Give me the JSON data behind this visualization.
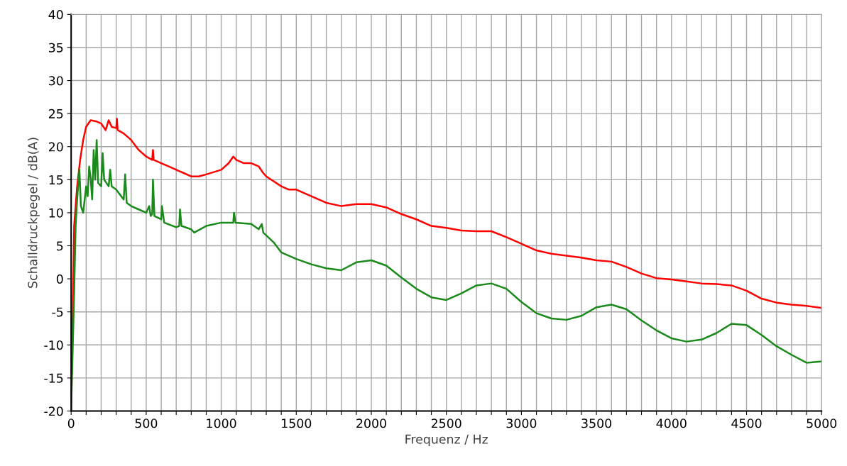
{
  "chart_data": {
    "type": "line",
    "xlabel": "Frequenz / Hz",
    "ylabel": "Schalldruckpegel / dB(A)",
    "xlim": [
      0,
      5000
    ],
    "ylim": [
      -20,
      40
    ],
    "xticks": [
      0,
      {
        "value": 100,
        "label": null
      },
      {
        "value": 200,
        "label": null
      },
      {
        "value": 300,
        "label": null
      },
      {
        "value": 400,
        "label": null
      },
      500,
      {
        "value": 600,
        "label": null
      },
      {
        "value": 700,
        "label": null
      },
      {
        "value": 800,
        "label": null
      },
      {
        "value": 900,
        "label": null
      },
      1000,
      {
        "value": 1100,
        "label": null
      },
      {
        "value": 1200,
        "label": null
      },
      {
        "value": 1300,
        "label": null
      },
      {
        "value": 1400,
        "label": null
      },
      1500,
      {
        "value": 1600,
        "label": null
      },
      {
        "value": 1700,
        "label": null
      },
      {
        "value": 1800,
        "label": null
      },
      {
        "value": 1900,
        "label": null
      },
      2000,
      {
        "value": 2100,
        "label": null
      },
      {
        "value": 2200,
        "label": null
      },
      {
        "value": 2300,
        "label": null
      },
      {
        "value": 2400,
        "label": null
      },
      2500,
      {
        "value": 2600,
        "label": null
      },
      {
        "value": 2700,
        "label": null
      },
      {
        "value": 2800,
        "label": null
      },
      {
        "value": 2900,
        "label": null
      },
      3000,
      {
        "value": 3100,
        "label": null
      },
      {
        "value": 3200,
        "label": null
      },
      {
        "value": 3300,
        "label": null
      },
      {
        "value": 3400,
        "label": null
      },
      3500,
      {
        "value": 3600,
        "label": null
      },
      {
        "value": 3700,
        "label": null
      },
      {
        "value": 3800,
        "label": null
      },
      {
        "value": 3900,
        "label": null
      },
      4000,
      {
        "value": 4100,
        "label": null
      },
      {
        "value": 4200,
        "label": null
      },
      {
        "value": 4300,
        "label": null
      },
      {
        "value": 4400,
        "label": null
      },
      4500,
      {
        "value": 4600,
        "label": null
      },
      {
        "value": 4700,
        "label": null
      },
      {
        "value": 4800,
        "label": null
      },
      {
        "value": 4900,
        "label": null
      },
      5000
    ],
    "yticks": [
      -20,
      -15,
      -10,
      -5,
      0,
      5,
      10,
      15,
      20,
      25,
      30,
      35,
      40
    ],
    "grid": true,
    "marker": "none",
    "line_style": "solid",
    "series": [
      {
        "color": "#ff0000",
        "x": [
          0,
          20,
          40,
          60,
          80,
          100,
          130,
          170,
          200,
          230,
          250,
          270,
          300,
          305,
          310,
          350,
          400,
          450,
          500,
          540,
          545,
          550,
          600,
          650,
          700,
          750,
          800,
          850,
          900,
          1000,
          1050,
          1080,
          1100,
          1150,
          1200,
          1250,
          1280,
          1300,
          1400,
          1450,
          1500,
          1600,
          1700,
          1800,
          1900,
          2000,
          2100,
          2200,
          2300,
          2400,
          2500,
          2600,
          2700,
          2800,
          2900,
          3000,
          3100,
          3200,
          3300,
          3400,
          3500,
          3600,
          3700,
          3800,
          3900,
          4000,
          4100,
          4200,
          4300,
          4400,
          4500,
          4600,
          4700,
          4800,
          4900,
          5000
        ],
        "values": [
          -20,
          8,
          14,
          18,
          21,
          23,
          24,
          23.8,
          23.5,
          22.5,
          24,
          23,
          22.8,
          24.2,
          22.5,
          22,
          21,
          19.5,
          18.5,
          18,
          19.5,
          18,
          17.5,
          17,
          16.5,
          16,
          15.5,
          15.5,
          15.8,
          16.5,
          17.5,
          18.5,
          18,
          17.5,
          17.5,
          17,
          16,
          15.5,
          14,
          13.5,
          13.5,
          12.5,
          11.5,
          11,
          11.3,
          11.3,
          10.8,
          9.8,
          9,
          8,
          7.7,
          7.3,
          7.2,
          7.2,
          6.3,
          5.3,
          4.3,
          3.8,
          3.5,
          3.2,
          2.8,
          2.6,
          1.8,
          0.8,
          0.1,
          -0.1,
          -0.4,
          -0.7,
          -0.8,
          -1,
          -1.8,
          -3,
          -3.6,
          -3.9,
          -4.1,
          -4.4
        ]
      },
      {
        "color": "#1a8a1a",
        "x": [
          0,
          20,
          30,
          40,
          55,
          65,
          80,
          100,
          110,
          120,
          130,
          140,
          150,
          160,
          170,
          180,
          200,
          210,
          220,
          250,
          260,
          270,
          300,
          350,
          360,
          370,
          400,
          450,
          500,
          520,
          530,
          540,
          545,
          555,
          600,
          605,
          620,
          700,
          720,
          725,
          735,
          800,
          820,
          900,
          1000,
          1080,
          1085,
          1095,
          1200,
          1250,
          1270,
          1280,
          1350,
          1400,
          1500,
          1600,
          1700,
          1800,
          1900,
          2000,
          2100,
          2200,
          2300,
          2400,
          2500,
          2600,
          2700,
          2800,
          2900,
          3000,
          3100,
          3200,
          3300,
          3400,
          3500,
          3600,
          3700,
          3800,
          3900,
          4000,
          4100,
          4200,
          4300,
          4400,
          4500,
          4600,
          4700,
          4800,
          4900,
          5000
        ],
        "values": [
          -20,
          -2,
          8,
          12,
          16.5,
          11,
          10,
          14,
          12.5,
          17,
          15.2,
          12,
          19.5,
          15,
          21,
          14.5,
          14,
          19,
          15,
          14,
          16.5,
          14,
          13.5,
          12,
          15.8,
          11.5,
          11,
          10.5,
          10,
          11,
          9.5,
          9.8,
          15,
          9.5,
          9,
          11,
          8.5,
          7.8,
          8,
          10.5,
          8,
          7.5,
          7,
          8,
          8.5,
          8.5,
          10,
          8.5,
          8.3,
          7.5,
          8.3,
          7,
          5.5,
          4,
          3,
          2.2,
          1.6,
          1.3,
          2.5,
          2.8,
          2,
          0.2,
          -1.5,
          -2.8,
          -3.2,
          -2.2,
          -1,
          -0.7,
          -1.5,
          -3.5,
          -5.2,
          -6,
          -6.2,
          -5.6,
          -4.3,
          -3.9,
          -4.6,
          -6.3,
          -7.8,
          -9,
          -9.5,
          -9.2,
          -8.2,
          -6.8,
          -7,
          -8.5,
          -10.2,
          -11.5,
          -12.7,
          -12.5
        ]
      }
    ]
  }
}
